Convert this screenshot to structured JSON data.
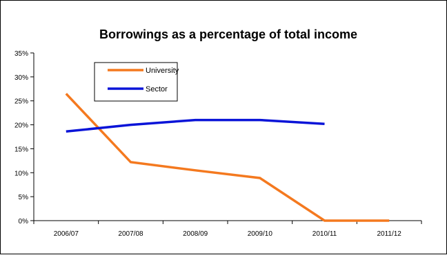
{
  "chart_data": {
    "type": "line",
    "title": "Borrowings as a percentage  of total income",
    "xlabel": "",
    "ylabel": "",
    "categories": [
      "2006/07",
      "2007/08",
      "2008/09",
      "2009/10",
      "2010/11",
      "2011/12"
    ],
    "y_ticks": [
      "0%",
      "5%",
      "10%",
      "15%",
      "20%",
      "25%",
      "30%",
      "35%"
    ],
    "ylim": [
      0,
      35
    ],
    "grid": false,
    "legend_position": "top-left",
    "series": [
      {
        "name": "University",
        "color": "#f4791f",
        "values": [
          26.5,
          12.2,
          10.5,
          8.9,
          0,
          0
        ]
      },
      {
        "name": "Sector",
        "color": "#0a14d8",
        "values": [
          18.6,
          20.0,
          21.0,
          21.0,
          20.2,
          null
        ]
      }
    ]
  }
}
